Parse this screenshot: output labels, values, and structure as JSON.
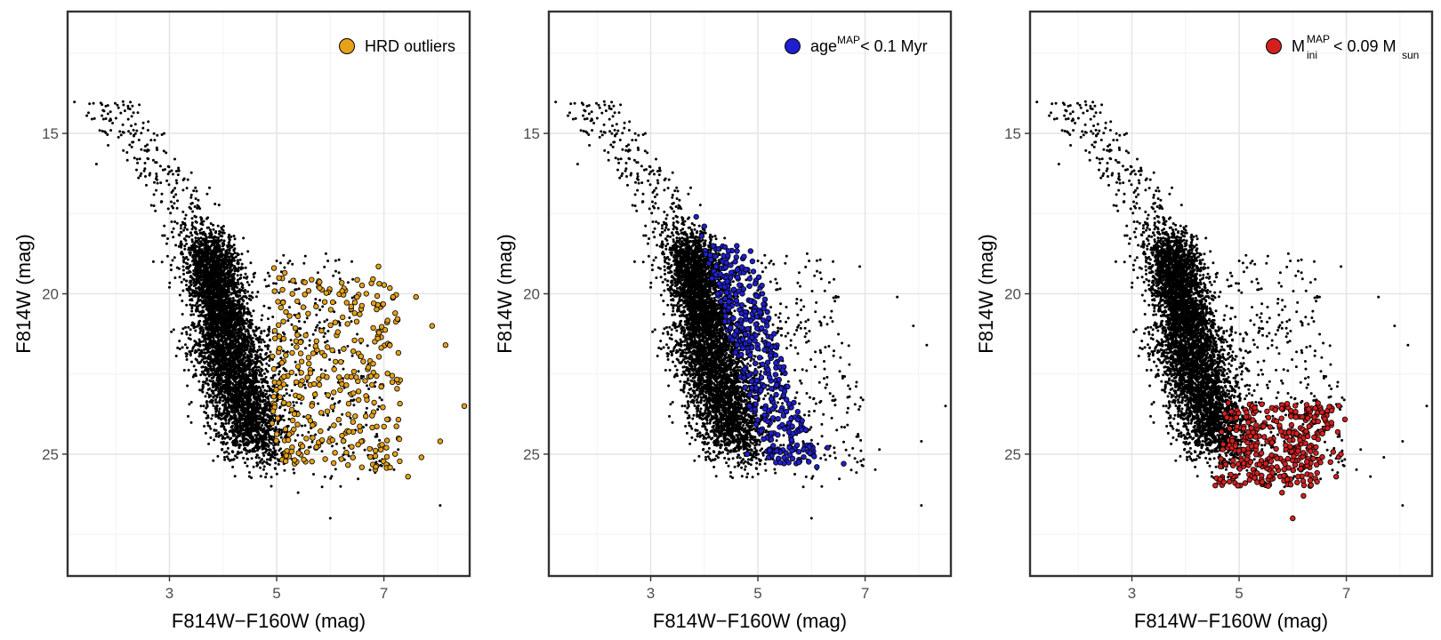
{
  "chart_data": [
    {
      "type": "scatter",
      "xlabel": "F814W−F160W (mag)",
      "ylabel": "F814W (mag)",
      "xlim": [
        1.1,
        8.6
      ],
      "ylim": [
        28.8,
        11.2
      ],
      "y_reversed": true,
      "xticks": [
        "3",
        "5",
        "7"
      ],
      "yticks": [
        "15",
        "20",
        "25"
      ],
      "grid": true,
      "legend_position": "top-right",
      "legend": {
        "label": "HRD outliers"
      },
      "highlight_color": "#e6a117",
      "background_color": "#000000",
      "highlight_region": {
        "center": [
          5.75,
          23.2
        ],
        "spread": [
          0.55,
          1.5
        ],
        "count": 330
      },
      "series": [
        {
          "role": "all",
          "color": "#000000",
          "points": [
            [
              1.72,
              14.05
            ],
            [
              1.78,
              14.3
            ],
            [
              1.9,
              14.55
            ],
            [
              2.05,
              14.2
            ],
            [
              2.1,
              15.05
            ],
            [
              2.6,
              14.9
            ],
            [
              2.9,
              15.0
            ],
            [
              3.15,
              17.1
            ],
            [
              3.85,
              17.2
            ],
            [
              2.7,
              19.0
            ],
            [
              3.0,
              19.8
            ],
            [
              8.05,
              26.6
            ],
            [
              6.0,
              27.0
            ],
            [
              5.4,
              26.2
            ],
            [
              4.9,
              26.0
            ]
          ]
        },
        {
          "name": "HRD outliers",
          "role": "highlight",
          "color": "#e6a117",
          "points": [
            [
              4.95,
              19.2
            ],
            [
              5.15,
              19.35
            ],
            [
              6.9,
              19.15
            ],
            [
              7.6,
              20.1
            ],
            [
              7.9,
              21.0
            ],
            [
              8.15,
              21.6
            ],
            [
              8.5,
              23.5
            ],
            [
              8.05,
              24.6
            ],
            [
              7.7,
              25.1
            ],
            [
              7.45,
              25.7
            ],
            [
              6.5,
              20.1
            ],
            [
              6.3,
              22.85
            ],
            [
              6.95,
              22.9
            ]
          ]
        }
      ]
    },
    {
      "type": "scatter",
      "xlabel": "F814W−F160W (mag)",
      "ylabel": "F814W (mag)",
      "xlim": [
        1.1,
        8.6
      ],
      "ylim": [
        28.8,
        11.2
      ],
      "y_reversed": true,
      "xticks": [
        "3",
        "5",
        "7"
      ],
      "yticks": [
        "15",
        "20",
        "25"
      ],
      "grid": true,
      "legend_position": "top-right",
      "legend": {
        "label": "age",
        "sup": "MAP",
        "rest": "< 0.1 Myr"
      },
      "highlight_color": "#1f1fd1",
      "background_color": "#000000",
      "highlight_region": {
        "center": [
          5.1,
          22.6
        ],
        "spread": [
          0.6,
          1.6
        ],
        "count": 420
      },
      "series": [
        {
          "role": "all",
          "color": "#000000",
          "points": [
            [
              1.72,
              14.05
            ],
            [
              1.78,
              14.3
            ],
            [
              1.9,
              14.55
            ],
            [
              2.05,
              14.2
            ],
            [
              2.1,
              15.05
            ],
            [
              2.6,
              14.9
            ],
            [
              2.9,
              15.0
            ],
            [
              2.7,
              19.0
            ],
            [
              3.0,
              19.8
            ],
            [
              7.6,
              20.1
            ],
            [
              7.9,
              21.0
            ],
            [
              8.15,
              21.6
            ],
            [
              8.5,
              23.5
            ],
            [
              8.05,
              24.6
            ],
            [
              8.05,
              26.6
            ],
            [
              6.9,
              19.15
            ],
            [
              6.5,
              20.1
            ],
            [
              6.0,
              27.0
            ]
          ]
        },
        {
          "name": "age < 0.1 Myr",
          "role": "highlight",
          "color": "#1f1fd1",
          "points": [
            [
              3.85,
              17.6
            ],
            [
              4.0,
              17.9
            ],
            [
              3.95,
              18.2
            ],
            [
              6.3,
              24.8
            ],
            [
              6.6,
              25.3
            ],
            [
              6.1,
              25.4
            ],
            [
              4.8,
              25.0
            ]
          ]
        }
      ]
    },
    {
      "type": "scatter",
      "xlabel": "F814W−F160W (mag)",
      "ylabel": "F814W (mag)",
      "xlim": [
        1.1,
        8.6
      ],
      "ylim": [
        28.8,
        11.2
      ],
      "y_reversed": true,
      "xticks": [
        "3",
        "5",
        "7"
      ],
      "yticks": [
        "15",
        "20",
        "25"
      ],
      "grid": true,
      "legend_position": "top-right",
      "legend": {
        "label": "M",
        "sup": "MAP",
        "sub": "ini",
        "rest": "< 0.09 M",
        "rest_sub": "sun"
      },
      "highlight_color": "#d42020",
      "background_color": "#000000",
      "highlight_region": {
        "center": [
          5.55,
          24.5
        ],
        "spread": [
          0.55,
          0.65
        ],
        "count": 360
      },
      "series": [
        {
          "role": "all",
          "color": "#000000",
          "points": [
            [
              1.72,
              14.05
            ],
            [
              1.78,
              14.3
            ],
            [
              1.9,
              14.55
            ],
            [
              2.05,
              14.2
            ],
            [
              2.1,
              15.05
            ],
            [
              2.6,
              14.9
            ],
            [
              2.9,
              15.0
            ],
            [
              2.7,
              19.0
            ],
            [
              3.0,
              19.8
            ],
            [
              7.6,
              20.1
            ],
            [
              7.9,
              21.0
            ],
            [
              8.15,
              21.6
            ],
            [
              8.5,
              23.5
            ],
            [
              8.05,
              24.6
            ],
            [
              8.05,
              26.6
            ],
            [
              6.9,
              19.15
            ],
            [
              6.5,
              20.1
            ],
            [
              7.45,
              25.7
            ],
            [
              7.7,
              25.1
            ]
          ]
        },
        {
          "name": "M ini < 0.09 M sun",
          "role": "highlight",
          "color": "#d42020",
          "points": [
            [
              4.8,
              23.4
            ],
            [
              6.3,
              23.6
            ],
            [
              6.9,
              25.0
            ],
            [
              6.1,
              25.7
            ],
            [
              6.2,
              26.3
            ],
            [
              5.8,
              26.2
            ],
            [
              6.0,
              27.0
            ]
          ]
        }
      ]
    }
  ]
}
